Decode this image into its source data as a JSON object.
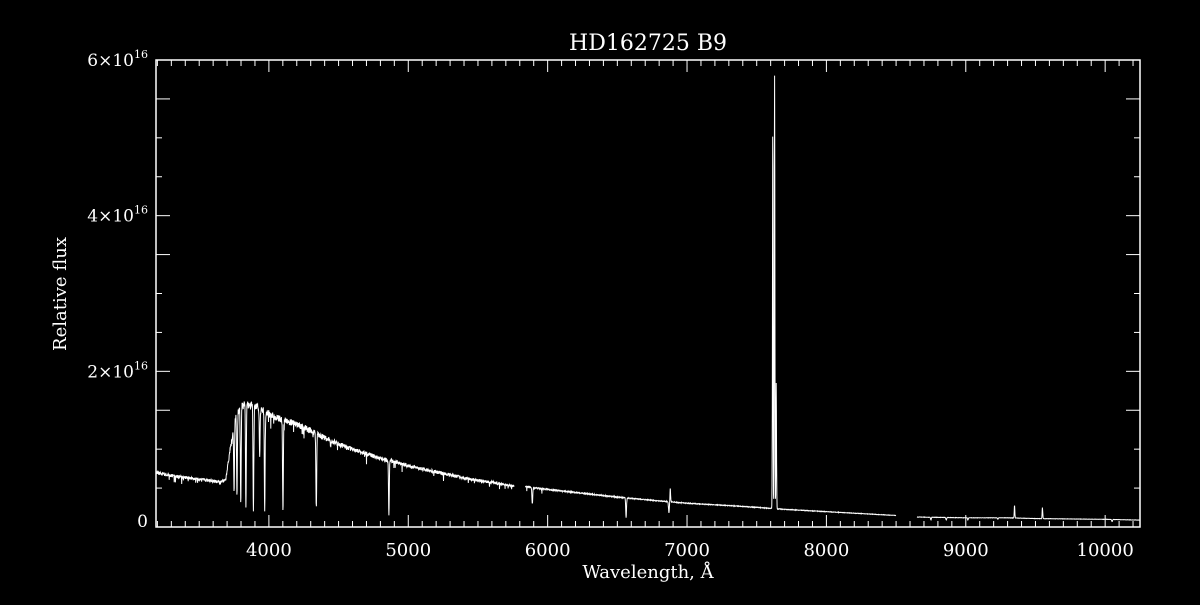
{
  "colors": {
    "background": "#000000",
    "foreground": "#ffffff"
  },
  "chart_data": {
    "type": "line",
    "title": "HD162725  B9",
    "xlabel": "Wavelength, Å",
    "ylabel": "Relative flux",
    "xlim": [
      3190,
      10250
    ],
    "ylim": [
      0,
      6e+16
    ],
    "grid": false,
    "y_scale_unit": 1e+16,
    "x_ticks": [
      4000,
      5000,
      6000,
      7000,
      8000,
      9000,
      10000
    ],
    "x_tick_labels": [
      "4000",
      "5000",
      "6000",
      "7000",
      "8000",
      "9000",
      "10000"
    ],
    "y_ticks": [
      0,
      2e+16,
      4e+16,
      6e+16
    ],
    "y_tick_labels": [
      {
        "mantissa": "0",
        "exponent": ""
      },
      {
        "mantissa": "2×10",
        "exponent": "16"
      },
      {
        "mantissa": "4×10",
        "exponent": "16"
      },
      {
        "mantissa": "6×10",
        "exponent": "16"
      }
    ],
    "continuum_segments": [
      [
        [
          3190,
          0.72
        ],
        [
          3300,
          0.68
        ],
        [
          3500,
          0.63
        ],
        [
          3650,
          0.6
        ],
        [
          3690,
          0.62
        ],
        [
          3720,
          1.0
        ],
        [
          3760,
          1.45
        ],
        [
          3800,
          1.6
        ],
        [
          3850,
          1.63
        ],
        [
          3900,
          1.6
        ],
        [
          3950,
          1.55
        ],
        [
          4000,
          1.5
        ],
        [
          4050,
          1.45
        ],
        [
          4100,
          1.42
        ],
        [
          4200,
          1.36
        ],
        [
          4300,
          1.28
        ],
        [
          4400,
          1.18
        ],
        [
          4500,
          1.1
        ],
        [
          4600,
          1.03
        ],
        [
          4700,
          0.97
        ],
        [
          4800,
          0.91
        ],
        [
          4900,
          0.87
        ],
        [
          5000,
          0.81
        ],
        [
          5200,
          0.73
        ],
        [
          5400,
          0.65
        ],
        [
          5600,
          0.59
        ],
        [
          5760,
          0.54
        ]
      ],
      [
        [
          5840,
          0.53
        ],
        [
          6000,
          0.49
        ],
        [
          6200,
          0.45
        ],
        [
          6500,
          0.39
        ],
        [
          6800,
          0.34
        ],
        [
          7000,
          0.31
        ],
        [
          7300,
          0.28
        ],
        [
          7550,
          0.25
        ],
        [
          7700,
          0.23
        ],
        [
          8000,
          0.2
        ],
        [
          8300,
          0.17
        ],
        [
          8500,
          0.15
        ]
      ],
      [
        [
          8650,
          0.13
        ],
        [
          9000,
          0.12
        ],
        [
          9300,
          0.12
        ],
        [
          9500,
          0.11
        ],
        [
          10000,
          0.1
        ],
        [
          10250,
          0.09
        ]
      ]
    ],
    "absorption_lines": [
      [
        3750,
        0.45
      ],
      [
        3771,
        0.4
      ],
      [
        3798,
        0.3
      ],
      [
        3835,
        0.25
      ],
      [
        3889,
        0.2
      ],
      [
        3934,
        0.9
      ],
      [
        3970,
        0.2
      ],
      [
        4101,
        0.2
      ],
      [
        4340,
        0.25
      ],
      [
        4861,
        0.15
      ],
      [
        5890,
        0.3
      ],
      [
        6563,
        0.12
      ],
      [
        6870,
        0.18
      ],
      [
        8750,
        0.09
      ],
      [
        8860,
        0.09
      ],
      [
        9015,
        0.09
      ],
      [
        9230,
        0.1
      ],
      [
        10050,
        0.07
      ]
    ],
    "emission_features": [
      [
        7615,
        5.15
      ],
      [
        7628,
        5.8
      ],
      [
        7640,
        1.85
      ],
      [
        6880,
        0.5
      ],
      [
        9350,
        0.28
      ],
      [
        9550,
        0.25
      ]
    ]
  }
}
